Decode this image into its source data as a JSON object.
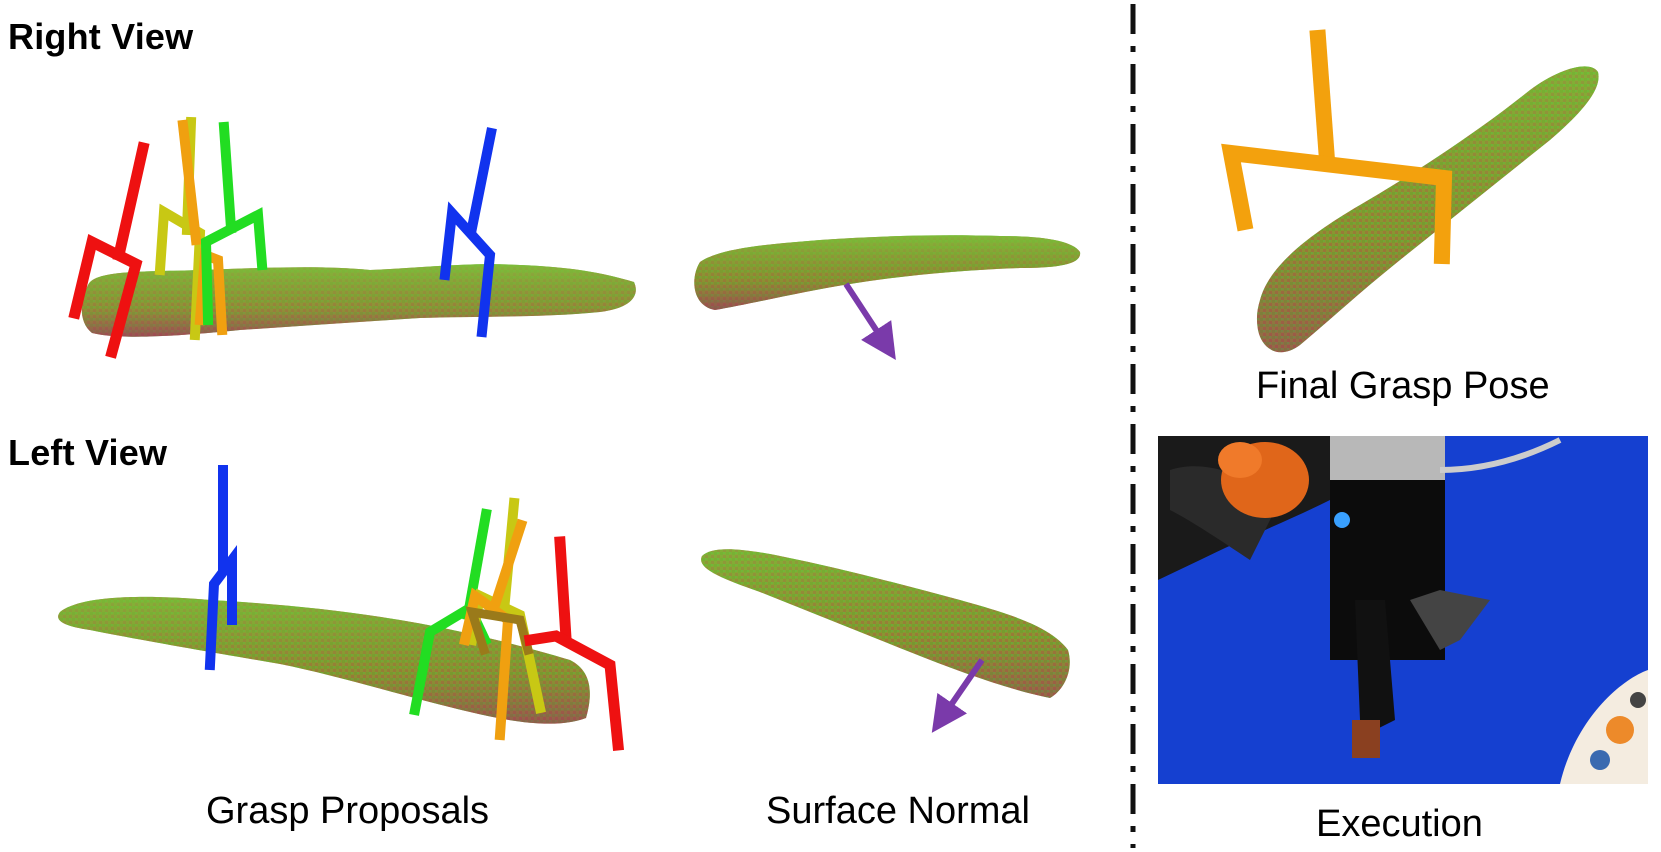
{
  "titles": {
    "right_view": "Right View",
    "left_view": "Left View"
  },
  "captions": {
    "grasp_proposals": "Grasp Proposals",
    "surface_normal": "Surface Normal",
    "final_grasp_pose": "Final Grasp Pose",
    "execution": "Execution"
  },
  "colors": {
    "red": "#ee1111",
    "orange": "#f0a010",
    "yellow": "#c8c814",
    "green": "#22dd22",
    "blue": "#1133ee",
    "normal_arrow": "#7a3aaa",
    "final_gripper": "#f3a10d",
    "table_blue": "#1540d0"
  },
  "icons": {
    "point_cloud": "point-cloud",
    "gripper": "gripper",
    "arrow": "normal-arrow"
  }
}
